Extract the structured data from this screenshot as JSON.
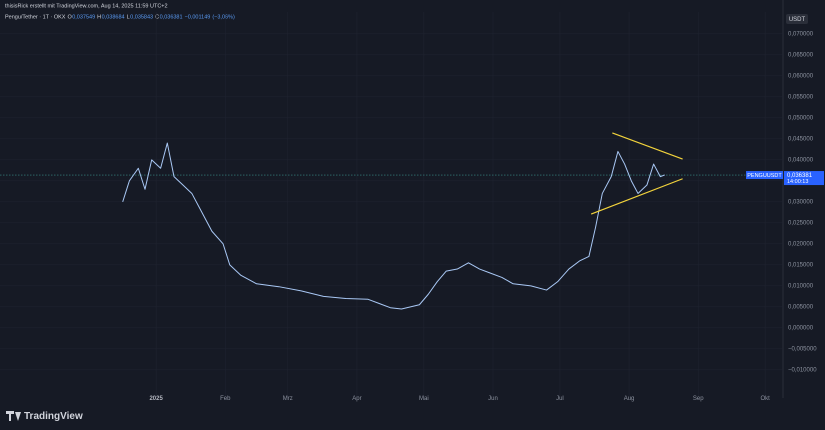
{
  "chart_data": {
    "type": "line",
    "credit": "thisisRick erstellt mit TradingView.com, Aug 14, 2025 11:59 UTC+2",
    "title": "Pengu/Tether · 1T · OKX",
    "ohlc": [
      {
        "name": "O",
        "value": 0.037549,
        "value_label": "0,037549"
      },
      {
        "name": "H",
        "value": 0.038684,
        "value_label": "0,038684"
      },
      {
        "name": "L",
        "value": 0.035843,
        "value_label": "0,035843"
      },
      {
        "name": "C",
        "value": 0.036381,
        "value_label": "0,036381"
      }
    ],
    "change": {
      "value": -0.001149,
      "value_label": "−0,001149"
    },
    "change_pct": {
      "value": -3.06,
      "value_label": "(−3,06%)"
    },
    "currency": "USDT",
    "symbol": "PENGUUSDT",
    "last_price": {
      "value": 0.036381,
      "value_label": "0,036381"
    },
    "countdown": "14:00:13",
    "brand": "TradingView",
    "grid": true,
    "xlim": [
      -70,
      281
    ],
    "xticks": [
      {
        "value": 0,
        "label": "2025"
      },
      {
        "value": 31,
        "label": "Feb"
      },
      {
        "value": 59,
        "label": "Mrz"
      },
      {
        "value": 90,
        "label": "Apr"
      },
      {
        "value": 120,
        "label": "Mai"
      },
      {
        "value": 151,
        "label": "Jun"
      },
      {
        "value": 181,
        "label": "Jul"
      },
      {
        "value": 212,
        "label": "Aug"
      },
      {
        "value": 243,
        "label": "Sep"
      },
      {
        "value": 273,
        "label": "Okt"
      }
    ],
    "ylim": [
      -0.0167,
      0.0752
    ],
    "yticks": [
      {
        "value": 0.07,
        "label": "0,070000"
      },
      {
        "value": 0.065,
        "label": "0,065000"
      },
      {
        "value": 0.06,
        "label": "0,060000"
      },
      {
        "value": 0.055,
        "label": "0,055000"
      },
      {
        "value": 0.05,
        "label": "0,050000"
      },
      {
        "value": 0.045,
        "label": "0,045000"
      },
      {
        "value": 0.04,
        "label": "0,040000"
      },
      {
        "value": 0.035,
        "label": "0,035000"
      },
      {
        "value": 0.03,
        "label": "0,030000"
      },
      {
        "value": 0.025,
        "label": "0,025000"
      },
      {
        "value": 0.02,
        "label": "0,020000"
      },
      {
        "value": 0.015,
        "label": "0,015000"
      },
      {
        "value": 0.01,
        "label": "0,010000"
      },
      {
        "value": 0.005,
        "label": "0,005000"
      },
      {
        "value": 0,
        "label": "0,000000"
      },
      {
        "value": -0.005,
        "label": "−0,005000"
      },
      {
        "value": -0.01,
        "label": "−0,010000"
      }
    ],
    "x": [
      -15,
      -12,
      -8,
      -5,
      -2,
      2,
      5,
      8,
      12,
      16,
      20,
      25,
      30,
      33,
      38,
      45,
      55,
      65,
      75,
      85,
      95,
      100,
      105,
      110,
      118,
      122,
      126,
      130,
      135,
      140,
      145,
      150,
      155,
      160,
      168,
      175,
      180,
      185,
      190,
      194,
      197,
      200,
      204,
      207,
      210,
      213,
      216,
      220,
      223,
      226,
      228
    ],
    "series": [
      {
        "name": "PENGUUSDT",
        "color": "#a9c8f5",
        "values": [
          0.03,
          0.035,
          0.038,
          0.033,
          0.04,
          0.038,
          0.044,
          0.036,
          0.034,
          0.032,
          0.028,
          0.023,
          0.02,
          0.015,
          0.0125,
          0.0105,
          0.0098,
          0.0088,
          0.0075,
          0.007,
          0.0068,
          0.0058,
          0.0048,
          0.0045,
          0.0055,
          0.008,
          0.011,
          0.0135,
          0.014,
          0.0155,
          0.014,
          0.013,
          0.012,
          0.0105,
          0.01,
          0.009,
          0.011,
          0.014,
          0.016,
          0.017,
          0.024,
          0.032,
          0.036,
          0.042,
          0.039,
          0.035,
          0.032,
          0.034,
          0.039,
          0.036,
          0.0364
        ]
      }
    ],
    "trendlines": [
      {
        "color": "#f2d33c",
        "x": [
          204.5,
          236
        ],
        "values": [
          0.0464,
          0.0402
        ]
      },
      {
        "color": "#f2d33c",
        "x": [
          195,
          236
        ],
        "values": [
          0.0271,
          0.0355
        ]
      }
    ]
  }
}
